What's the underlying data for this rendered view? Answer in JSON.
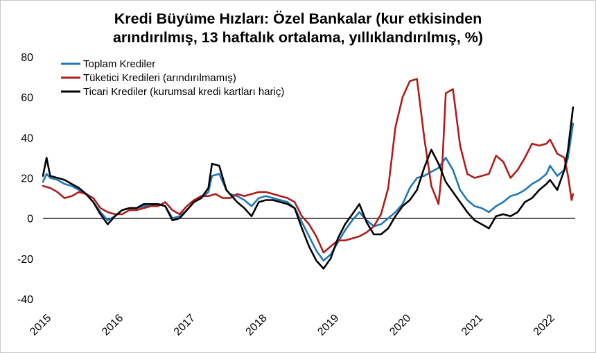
{
  "chart_data": {
    "type": "line",
    "title_line1": "Kredi Büyüme Hızları: Özel Bankalar (kur etkisinden",
    "title_line2": "arındırılmış, 13 haftalık ortalama, yıllıklandırılmış, %)",
    "xlabel": "",
    "ylabel": "",
    "ylim": [
      -40,
      80
    ],
    "yticks": [
      "80",
      "60",
      "40",
      "20",
      "0",
      "-20",
      "-40"
    ],
    "xlim": [
      2015,
      2022.4
    ],
    "xticks": [
      "2015",
      "2016",
      "2017",
      "2018",
      "2019",
      "2020",
      "2021",
      "2022"
    ],
    "legend_position": "top-left",
    "grid": false,
    "series": [
      {
        "name": "Toplam Krediler",
        "color": "#1f77b4",
        "points": [
          [
            2015.0,
            18
          ],
          [
            2015.05,
            22
          ],
          [
            2015.1,
            20
          ],
          [
            2015.2,
            19
          ],
          [
            2015.3,
            17
          ],
          [
            2015.4,
            16
          ],
          [
            2015.5,
            14
          ],
          [
            2015.6,
            12
          ],
          [
            2015.7,
            8
          ],
          [
            2015.8,
            3
          ],
          [
            2015.9,
            -1
          ],
          [
            2016.0,
            1
          ],
          [
            2016.1,
            4
          ],
          [
            2016.2,
            5
          ],
          [
            2016.3,
            5
          ],
          [
            2016.4,
            6
          ],
          [
            2016.5,
            6
          ],
          [
            2016.6,
            7
          ],
          [
            2016.7,
            6
          ],
          [
            2016.8,
            0
          ],
          [
            2016.9,
            1
          ],
          [
            2017.0,
            4
          ],
          [
            2017.1,
            8
          ],
          [
            2017.2,
            10
          ],
          [
            2017.3,
            13
          ],
          [
            2017.35,
            21
          ],
          [
            2017.45,
            22
          ],
          [
            2017.55,
            14
          ],
          [
            2017.6,
            12
          ],
          [
            2017.7,
            11
          ],
          [
            2017.8,
            9
          ],
          [
            2017.9,
            6
          ],
          [
            2018.0,
            10
          ],
          [
            2018.1,
            11
          ],
          [
            2018.2,
            10
          ],
          [
            2018.3,
            9
          ],
          [
            2018.4,
            8
          ],
          [
            2018.5,
            5
          ],
          [
            2018.6,
            -2
          ],
          [
            2018.7,
            -9
          ],
          [
            2018.8,
            -16
          ],
          [
            2018.9,
            -21
          ],
          [
            2019.0,
            -18
          ],
          [
            2019.1,
            -12
          ],
          [
            2019.2,
            -6
          ],
          [
            2019.3,
            -1
          ],
          [
            2019.4,
            3
          ],
          [
            2019.5,
            -1
          ],
          [
            2019.6,
            -4
          ],
          [
            2019.7,
            -3
          ],
          [
            2019.8,
            0
          ],
          [
            2019.9,
            3
          ],
          [
            2020.0,
            7
          ],
          [
            2020.1,
            15
          ],
          [
            2020.2,
            20
          ],
          [
            2020.3,
            21
          ],
          [
            2020.4,
            23
          ],
          [
            2020.5,
            25
          ],
          [
            2020.6,
            30
          ],
          [
            2020.7,
            24
          ],
          [
            2020.8,
            14
          ],
          [
            2020.9,
            9
          ],
          [
            2021.0,
            6
          ],
          [
            2021.1,
            5
          ],
          [
            2021.2,
            3
          ],
          [
            2021.3,
            6
          ],
          [
            2021.4,
            8
          ],
          [
            2021.5,
            11
          ],
          [
            2021.6,
            12
          ],
          [
            2021.7,
            14
          ],
          [
            2021.8,
            17
          ],
          [
            2021.9,
            19
          ],
          [
            2022.0,
            22
          ],
          [
            2022.05,
            26
          ],
          [
            2022.15,
            21
          ],
          [
            2022.25,
            24
          ],
          [
            2022.3,
            30
          ],
          [
            2022.37,
            47
          ]
        ]
      },
      {
        "name": "Tüketici Kredileri (arındırılmamış)",
        "color": "#b01c1c",
        "points": [
          [
            2015.0,
            16
          ],
          [
            2015.1,
            15
          ],
          [
            2015.2,
            13
          ],
          [
            2015.3,
            10
          ],
          [
            2015.4,
            11
          ],
          [
            2015.5,
            13
          ],
          [
            2015.6,
            12
          ],
          [
            2015.7,
            10
          ],
          [
            2015.8,
            5
          ],
          [
            2015.9,
            3
          ],
          [
            2016.0,
            2
          ],
          [
            2016.1,
            2
          ],
          [
            2016.2,
            4
          ],
          [
            2016.3,
            4
          ],
          [
            2016.4,
            5
          ],
          [
            2016.5,
            6
          ],
          [
            2016.6,
            6
          ],
          [
            2016.7,
            8
          ],
          [
            2016.8,
            4
          ],
          [
            2016.9,
            2
          ],
          [
            2017.0,
            6
          ],
          [
            2017.1,
            9
          ],
          [
            2017.2,
            11
          ],
          [
            2017.3,
            11
          ],
          [
            2017.4,
            12
          ],
          [
            2017.5,
            10
          ],
          [
            2017.6,
            10
          ],
          [
            2017.7,
            12
          ],
          [
            2017.8,
            11
          ],
          [
            2017.9,
            12
          ],
          [
            2018.0,
            13
          ],
          [
            2018.1,
            13
          ],
          [
            2018.2,
            12
          ],
          [
            2018.3,
            11
          ],
          [
            2018.4,
            10
          ],
          [
            2018.5,
            8
          ],
          [
            2018.6,
            1
          ],
          [
            2018.7,
            -3
          ],
          [
            2018.8,
            -9
          ],
          [
            2018.9,
            -17
          ],
          [
            2019.0,
            -14
          ],
          [
            2019.1,
            -11
          ],
          [
            2019.2,
            -11
          ],
          [
            2019.3,
            -10
          ],
          [
            2019.4,
            -9
          ],
          [
            2019.5,
            -7
          ],
          [
            2019.6,
            -4
          ],
          [
            2019.7,
            2
          ],
          [
            2019.8,
            15
          ],
          [
            2019.9,
            45
          ],
          [
            2020.0,
            60
          ],
          [
            2020.1,
            68
          ],
          [
            2020.2,
            69
          ],
          [
            2020.3,
            40
          ],
          [
            2020.4,
            16
          ],
          [
            2020.5,
            7
          ],
          [
            2020.55,
            25
          ],
          [
            2020.6,
            62
          ],
          [
            2020.7,
            64
          ],
          [
            2020.8,
            36
          ],
          [
            2020.9,
            22
          ],
          [
            2021.0,
            20
          ],
          [
            2021.1,
            21
          ],
          [
            2021.2,
            22
          ],
          [
            2021.3,
            31
          ],
          [
            2021.4,
            28
          ],
          [
            2021.5,
            20
          ],
          [
            2021.6,
            24
          ],
          [
            2021.7,
            30
          ],
          [
            2021.8,
            37
          ],
          [
            2021.9,
            36
          ],
          [
            2022.0,
            37
          ],
          [
            2022.05,
            39
          ],
          [
            2022.15,
            32
          ],
          [
            2022.25,
            30
          ],
          [
            2022.3,
            21
          ],
          [
            2022.35,
            9
          ],
          [
            2022.37,
            12
          ]
        ]
      },
      {
        "name": "Ticari Krediler (kurumsal kredi kartları hariç)",
        "color": "#000000",
        "points": [
          [
            2015.0,
            21
          ],
          [
            2015.05,
            30
          ],
          [
            2015.1,
            21
          ],
          [
            2015.2,
            20
          ],
          [
            2015.3,
            19
          ],
          [
            2015.4,
            17
          ],
          [
            2015.5,
            15
          ],
          [
            2015.6,
            12
          ],
          [
            2015.7,
            8
          ],
          [
            2015.8,
            2
          ],
          [
            2015.9,
            -3
          ],
          [
            2016.0,
            1
          ],
          [
            2016.1,
            4
          ],
          [
            2016.2,
            5
          ],
          [
            2016.3,
            5
          ],
          [
            2016.4,
            7
          ],
          [
            2016.5,
            7
          ],
          [
            2016.6,
            7
          ],
          [
            2016.7,
            6
          ],
          [
            2016.8,
            -1
          ],
          [
            2016.9,
            0
          ],
          [
            2017.0,
            4
          ],
          [
            2017.1,
            8
          ],
          [
            2017.2,
            10
          ],
          [
            2017.3,
            15
          ],
          [
            2017.35,
            27
          ],
          [
            2017.45,
            26
          ],
          [
            2017.55,
            14
          ],
          [
            2017.6,
            12
          ],
          [
            2017.7,
            8
          ],
          [
            2017.8,
            5
          ],
          [
            2017.9,
            1
          ],
          [
            2018.0,
            8
          ],
          [
            2018.1,
            9
          ],
          [
            2018.2,
            9
          ],
          [
            2018.3,
            8
          ],
          [
            2018.4,
            7
          ],
          [
            2018.5,
            5
          ],
          [
            2018.6,
            -5
          ],
          [
            2018.7,
            -14
          ],
          [
            2018.8,
            -21
          ],
          [
            2018.9,
            -25
          ],
          [
            2019.0,
            -20
          ],
          [
            2019.1,
            -10
          ],
          [
            2019.2,
            -3
          ],
          [
            2019.3,
            2
          ],
          [
            2019.4,
            7
          ],
          [
            2019.5,
            -2
          ],
          [
            2019.6,
            -8
          ],
          [
            2019.7,
            -8
          ],
          [
            2019.8,
            -5
          ],
          [
            2019.9,
            1
          ],
          [
            2020.0,
            6
          ],
          [
            2020.1,
            9
          ],
          [
            2020.2,
            14
          ],
          [
            2020.3,
            25
          ],
          [
            2020.4,
            34
          ],
          [
            2020.5,
            27
          ],
          [
            2020.6,
            18
          ],
          [
            2020.7,
            13
          ],
          [
            2020.8,
            8
          ],
          [
            2020.9,
            3
          ],
          [
            2021.0,
            -1
          ],
          [
            2021.1,
            -3
          ],
          [
            2021.2,
            -5
          ],
          [
            2021.3,
            1
          ],
          [
            2021.4,
            2
          ],
          [
            2021.5,
            1
          ],
          [
            2021.6,
            3
          ],
          [
            2021.7,
            8
          ],
          [
            2021.8,
            10
          ],
          [
            2021.9,
            14
          ],
          [
            2022.0,
            17
          ],
          [
            2022.05,
            19
          ],
          [
            2022.15,
            14
          ],
          [
            2022.25,
            24
          ],
          [
            2022.3,
            34
          ],
          [
            2022.37,
            55
          ]
        ]
      }
    ]
  }
}
